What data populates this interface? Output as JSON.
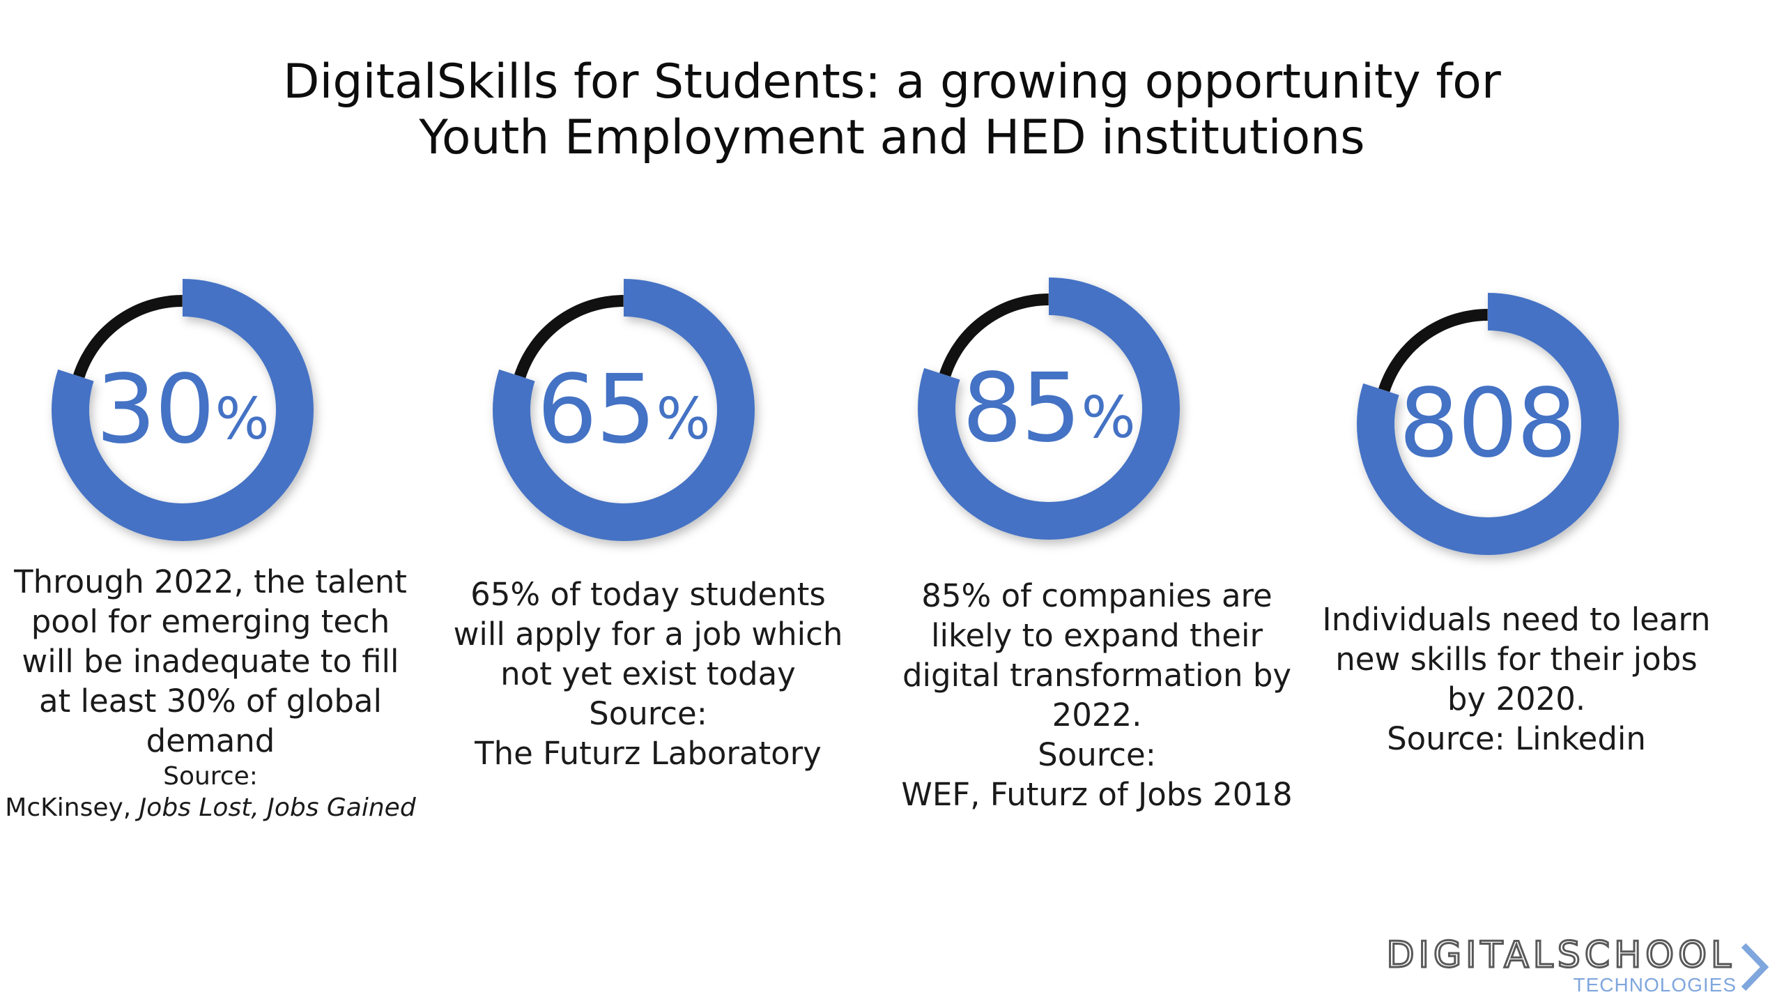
{
  "title": {
    "line1": "DigitalSkills for Students: a growing opportunity for",
    "line2": "Youth Employment and HED institutions"
  },
  "colors": {
    "ring_blue": "#4472c4",
    "ring_dark": "#111111",
    "logo_blue": "#7fa6dd",
    "logo_gray": "#595959"
  },
  "stats": [
    {
      "value": "30",
      "unit": "%",
      "fill": 0.8,
      "lines": [
        "Through 2022, the talent",
        "pool for emerging tech",
        "will be inadequate to fill",
        "at least 30% of global",
        "demand"
      ],
      "source_label": "Source:",
      "source_prefix": "McKinsey, ",
      "source_italic": "Jobs Lost, Jobs Gained"
    },
    {
      "value": "65",
      "unit": "%",
      "fill": 0.8,
      "lines": [
        "65% of today students",
        "will apply for a job which",
        "not yet exist today",
        "Source:",
        "The Futurz Laboratory"
      ]
    },
    {
      "value": "85",
      "unit": "%",
      "fill": 0.8,
      "lines": [
        "85% of companies are",
        "likely to expand their",
        "digital transformation by",
        "2022.",
        "Source:",
        "WEF, Futurz of Jobs 2018"
      ]
    },
    {
      "value": "808",
      "unit": "",
      "fill": 0.8,
      "lines": [
        "Individuals need to learn",
        "new skills for their jobs",
        "by 2020.",
        "Source: Linkedin"
      ]
    }
  ],
  "logo": {
    "main": "DIGITALSCHOOL",
    "sub": "TECHNOLOGIES",
    "icon": "chevron-right-icon"
  }
}
